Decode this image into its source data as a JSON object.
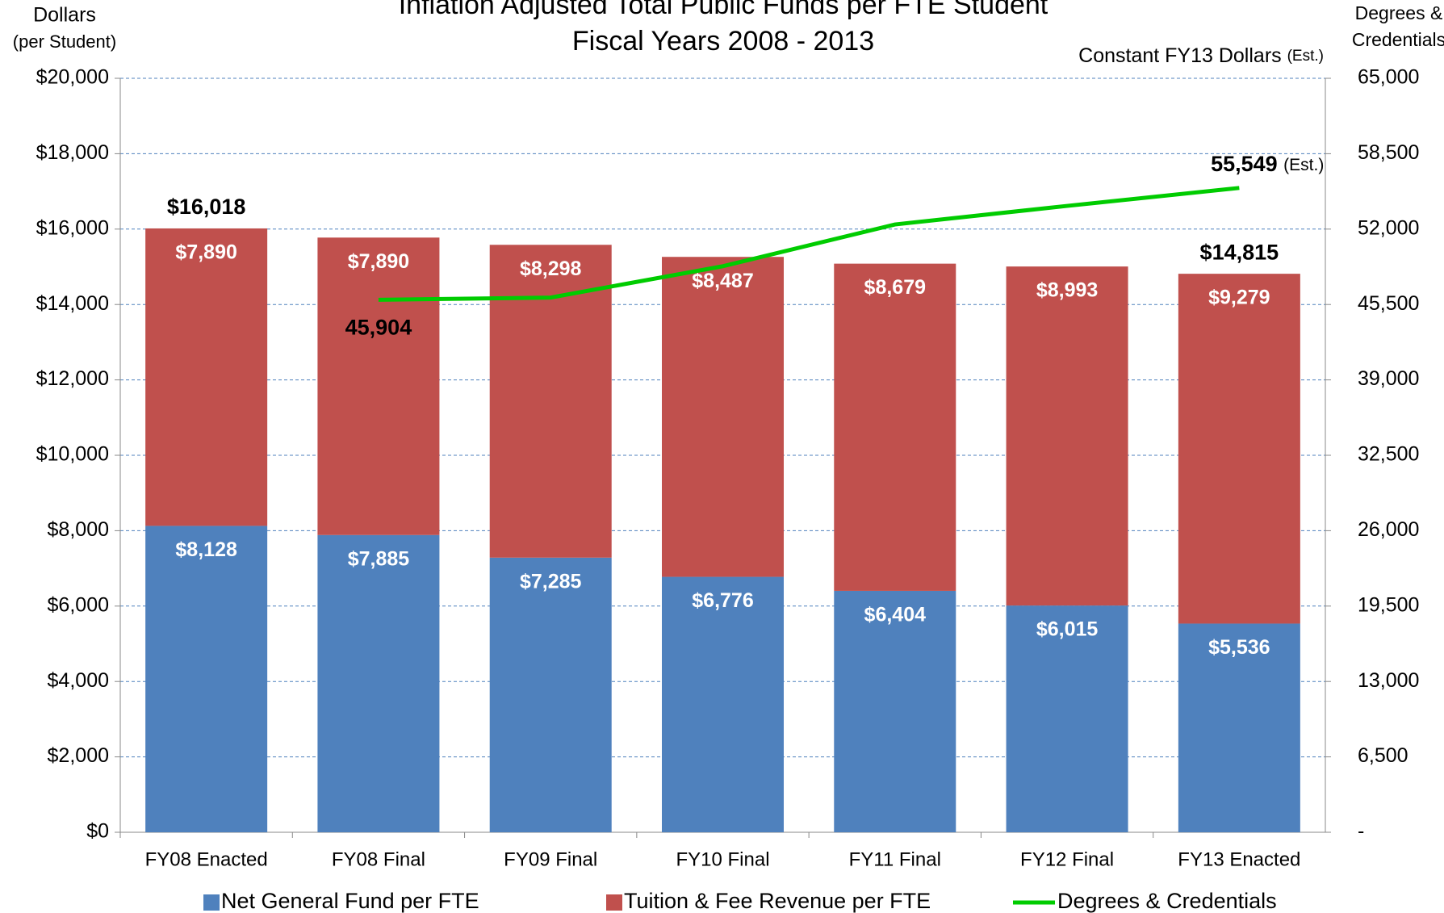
{
  "chart_data": {
    "type": "bar",
    "title": "Inflation Adjusted Total Public Funds per FTE Student",
    "subtitle": "Fiscal Years 2008 - 2013",
    "y_label": [
      "Dollars",
      "(per Student)"
    ],
    "y2_label": [
      "Degrees &",
      "Credentials"
    ],
    "note": "Constant FY13 Dollars",
    "note_suffix": "(Est.)",
    "stacked": true,
    "grid": true,
    "categories": [
      "FY08 Enacted",
      "FY08 Final",
      "FY09 Final",
      "FY10 Final",
      "FY11 Final",
      "FY12 Final",
      "FY13 Enacted"
    ],
    "series": [
      {
        "name": "Net General Fund per FTE",
        "color": "#4f81bd",
        "type": "bar",
        "values": [
          8128,
          7885,
          7285,
          6776,
          6404,
          6015,
          5536
        ],
        "value_labels": [
          "$8,128",
          "$7,885",
          "$7,285",
          "$6,776",
          "$6,404",
          "$6,015",
          "$5,536"
        ]
      },
      {
        "name": "Tuition & Fee Revenue per FTE",
        "color": "#c0504d",
        "type": "bar",
        "values": [
          7890,
          7890,
          8298,
          8487,
          8679,
          8993,
          9279
        ],
        "value_labels": [
          "$7,890",
          "$7,890",
          "$8,298",
          "$8,487",
          "$8,679",
          "$8,993",
          "$9,279"
        ]
      },
      {
        "name": "Degrees & Credentials",
        "color": "#00cc00",
        "type": "line",
        "axis": "y2",
        "values": [
          null,
          45904,
          46100,
          48800,
          52400,
          54000,
          55549
        ],
        "value_labels": [
          null,
          "45,904",
          null,
          null,
          null,
          null,
          "55,549"
        ],
        "label_suffix": "(Est.)"
      }
    ],
    "totals": [
      16018,
      null,
      null,
      null,
      null,
      null,
      14815
    ],
    "total_labels": [
      "$16,018",
      null,
      null,
      null,
      null,
      null,
      "$14,815"
    ],
    "ylim": [
      0,
      20000
    ],
    "yticks": [
      {
        "value": 0,
        "label": "$0"
      },
      {
        "value": 2000,
        "label": "$2,000"
      },
      {
        "value": 4000,
        "label": "$4,000"
      },
      {
        "value": 6000,
        "label": "$6,000"
      },
      {
        "value": 8000,
        "label": "$8,000"
      },
      {
        "value": 10000,
        "label": "$10,000"
      },
      {
        "value": 12000,
        "label": "$12,000"
      },
      {
        "value": 14000,
        "label": "$14,000"
      },
      {
        "value": 16000,
        "label": "$16,000"
      },
      {
        "value": 18000,
        "label": "$18,000"
      },
      {
        "value": 20000,
        "label": "$20,000"
      }
    ],
    "y2lim": [
      0,
      65000
    ],
    "y2ticks": [
      {
        "value": 0,
        "label": "-"
      },
      {
        "value": 6500,
        "label": "6,500"
      },
      {
        "value": 13000,
        "label": "13,000"
      },
      {
        "value": 19500,
        "label": "19,500"
      },
      {
        "value": 26000,
        "label": "26,000"
      },
      {
        "value": 32500,
        "label": "32,500"
      },
      {
        "value": 39000,
        "label": "39,000"
      },
      {
        "value": 45500,
        "label": "45,500"
      },
      {
        "value": 52000,
        "label": "52,000"
      },
      {
        "value": 58500,
        "label": "58,500"
      },
      {
        "value": 65000,
        "label": "65,000"
      }
    ]
  }
}
